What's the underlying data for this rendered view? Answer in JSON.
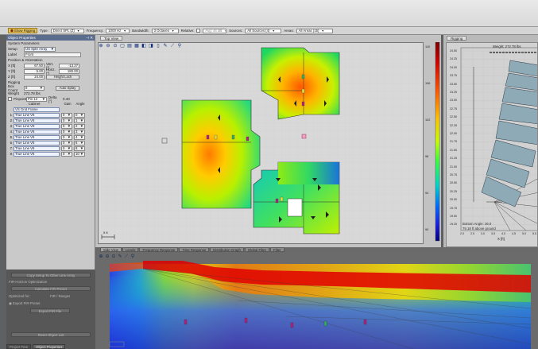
{
  "toolbar": {
    "show_rigging_label": "Show Rigging",
    "type_label": "Type:",
    "type_value": "Direct SPL (Z)",
    "frequency_label": "Frequency:",
    "frequency_value": "1000 Hz",
    "bandwidth_label": "Bandwidth:",
    "bandwidth_value": "3 Octaves",
    "relative_label": "Relative:",
    "relative_value": "Avg: 44 dB",
    "sources_label": "Sources:",
    "sources_value": "All Sources (4)",
    "areas_label": "Areas:",
    "areas_value": "All Areas (15)"
  },
  "left": {
    "panel_title": "Object Properties",
    "system_params": "System Parameters",
    "setup_label": "Setup",
    "setup_value": "US Spkr Array",
    "label_label": "Label",
    "label_value": "Front",
    "pos_title": "Position & Orientation",
    "x_label": "X [ft]",
    "x_value": "67.50",
    "vert_label": "Vert. [°]",
    "vert_value": "-13.27",
    "y_label": "Y [ft]",
    "y_value": "5.00",
    "horiz_label": "Horiz. [°]",
    "horiz_value": "180.00",
    "z_label": "Z [ft]",
    "z_value": "24.00",
    "height_lock": "Height Lock",
    "rigging_title": "Rigging",
    "box_count_label": "Box Count",
    "box_count_value": "8",
    "auto_splay": "Auto Splay",
    "weight_label": "Weight",
    "weight_value": "272.78 lbs",
    "pinpoint_label": "Pinpoint",
    "pinpoint_value": "Pin 12",
    "delta_label": "Delta [°]",
    "delta_value": "0.40",
    "cabinet_label": "Cabinet",
    "gain_label": "Gain",
    "angle_label": "Angle",
    "fly_frame": "VS Grid Frame",
    "cabinets": [
      {
        "num": "1",
        "name": "True Line V6",
        "gain": "0",
        "angle": "0"
      },
      {
        "num": "2",
        "name": "True Line V6",
        "gain": "0",
        "angle": "1"
      },
      {
        "num": "3",
        "name": "True Line V6",
        "gain": "0",
        "angle": "2"
      },
      {
        "num": "4",
        "name": "True Line V6",
        "gain": "0",
        "angle": "3"
      },
      {
        "num": "5",
        "name": "True Line V6",
        "gain": "0",
        "angle": "4"
      },
      {
        "num": "6",
        "name": "True Line V6",
        "gain": "0",
        "angle": "6"
      },
      {
        "num": "7",
        "name": "True Line V6",
        "gain": "0",
        "angle": "8"
      },
      {
        "num": "8",
        "name": "True Line V6",
        "gain": "0",
        "angle": "10"
      }
    ],
    "copy_settings": "Copy Setup To Other Line Array",
    "fir_title": "FIR-Horizon Optimization",
    "fir_button": "Calculate FIR-Preset",
    "optimize_label": "Optimized for:",
    "optimize_value": "FIR / Ranges",
    "export_label": "Export FIR-Preset",
    "export_button": "Export FIR File",
    "reset_button": "Reset Object List",
    "tab_project": "Project Tree",
    "tab_props": "Object Properties"
  },
  "top_view": {
    "tab": "Top View",
    "scale_label": "5 ft"
  },
  "colorbar": {
    "ticks": [
      "110",
      "106",
      "102",
      "98",
      "94",
      "90"
    ],
    "colors": [
      "#7d0000",
      "#d40000",
      "#ff5a00",
      "#ffc000",
      "#c8ff00",
      "#37ff40",
      "#00d6c8",
      "#0070ff",
      "#1c1ce0",
      "#000080"
    ]
  },
  "rigging": {
    "tab": "Rigging",
    "weight_text": "Weight: 272.78 lbs",
    "y_ticks": [
      "24.50",
      "24.25",
      "24.00",
      "23.75",
      "23.50",
      "23.25",
      "23.00",
      "22.75",
      "22.50",
      "22.25",
      "22.00",
      "21.75",
      "21.50",
      "21.25",
      "21.00",
      "20.75",
      "20.50",
      "20.25",
      "20.00",
      "19.75",
      "19.50",
      "19.25"
    ],
    "x_ticks": [
      "2.0",
      "2.5",
      "3.0",
      "3.5",
      "4.0",
      "4.5",
      "5.0",
      "5.5"
    ],
    "x_label": "X [ft]",
    "bottom_text1": "Bottom Angle: 36.0",
    "bottom_text2": "79.18 ft above ground"
  },
  "side_view": {
    "tabs": [
      "Side View",
      "Levels",
      "Frequency Response",
      "Time Response",
      "Distribution Graph",
      "Global Filter",
      "Filter"
    ]
  }
}
